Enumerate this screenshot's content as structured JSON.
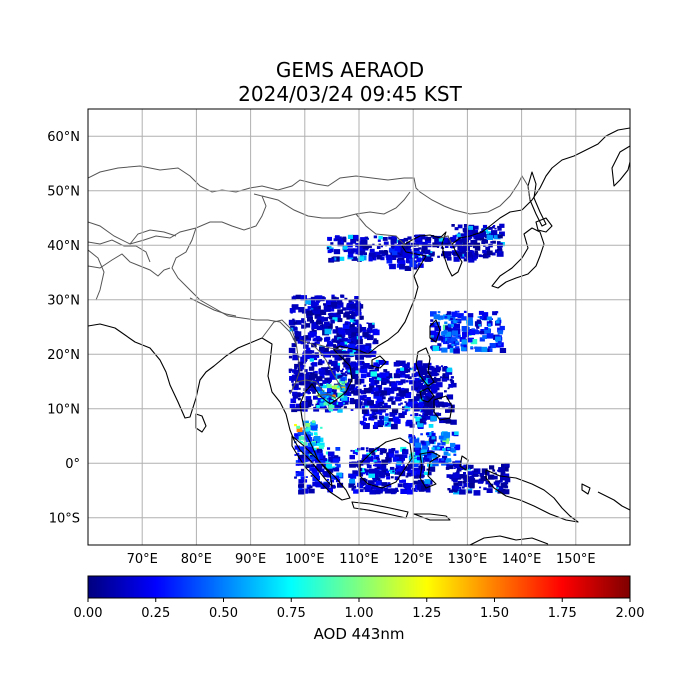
{
  "title": {
    "line1": "GEMS AERAOD",
    "line2": "2024/03/24 09:45 KST"
  },
  "map": {
    "lon_range": [
      60,
      160
    ],
    "lat_range": [
      -15,
      65
    ],
    "lat_ticks": [
      {
        "value": 60,
        "label": "60°N"
      },
      {
        "value": 50,
        "label": "50°N"
      },
      {
        "value": 40,
        "label": "40°N"
      },
      {
        "value": 30,
        "label": "30°N"
      },
      {
        "value": 20,
        "label": "20°N"
      },
      {
        "value": 10,
        "label": "10°N"
      },
      {
        "value": 0,
        "label": "0°"
      },
      {
        "value": -10,
        "label": "10°S"
      }
    ],
    "lon_ticks": [
      {
        "value": 70,
        "label": "70°E"
      },
      {
        "value": 80,
        "label": "80°E"
      },
      {
        "value": 90,
        "label": "90°E"
      },
      {
        "value": 100,
        "label": "100°E"
      },
      {
        "value": 110,
        "label": "110°E"
      },
      {
        "value": 120,
        "label": "120°E"
      },
      {
        "value": 130,
        "label": "130°E"
      },
      {
        "value": 140,
        "label": "140°E"
      },
      {
        "value": 150,
        "label": "150°E"
      }
    ],
    "gridlines": true
  },
  "colorbar": {
    "label": "AOD 443nm",
    "min": 0.0,
    "max": 2.0,
    "colormap": "jet",
    "ticks": [
      "0.00",
      "0.25",
      "0.50",
      "0.75",
      "1.00",
      "1.25",
      "1.50",
      "1.75",
      "2.00"
    ],
    "colors": [
      "#00007f",
      "#0000ff",
      "#007fff",
      "#00ffff",
      "#7fff7f",
      "#ffff00",
      "#ff7f00",
      "#ff0000",
      "#7f0000"
    ]
  },
  "aod_regions": [
    {
      "name": "north-china-band",
      "lon": [
        104,
        131
      ],
      "lat": [
        37.5,
        42
      ],
      "aod": 0.12
    },
    {
      "name": "northeast-china",
      "lon": [
        127,
        136
      ],
      "lat": [
        38,
        44
      ],
      "aod": 0.1
    },
    {
      "name": "north-china-plain",
      "lon": [
        115,
        121
      ],
      "lat": [
        36,
        40
      ],
      "aod": 0.2
    },
    {
      "name": "southwest-china-indochina",
      "lon": [
        97,
        110
      ],
      "lat": [
        10,
        31
      ],
      "aod": 0.12
    },
    {
      "name": "south-china",
      "lon": [
        106,
        113
      ],
      "lat": [
        20,
        26
      ],
      "aod": 0.15
    },
    {
      "name": "north-philippine-sea",
      "lon": [
        123,
        136
      ],
      "lat": [
        21,
        28
      ],
      "aod": 0.3
    },
    {
      "name": "south-china-sea",
      "lon": [
        110,
        123
      ],
      "lat": [
        7,
        19
      ],
      "aod": 0.15
    },
    {
      "name": "philippines",
      "lon": [
        120,
        127
      ],
      "lat": [
        8,
        18
      ],
      "aod": 0.1
    },
    {
      "name": "gulf-of-thailand",
      "lon": [
        102,
        107
      ],
      "lat": [
        10,
        16
      ],
      "aod": 0.6
    },
    {
      "name": "malay-peninsula",
      "lon": [
        98,
        103
      ],
      "lat": [
        1,
        8
      ],
      "aod": 0.55
    },
    {
      "name": "sumatra",
      "lon": [
        98,
        106
      ],
      "lat": [
        -5,
        3
      ],
      "aod": 0.2
    },
    {
      "name": "borneo-java-sea",
      "lon": [
        108,
        123
      ],
      "lat": [
        -5,
        3
      ],
      "aod": 0.15
    },
    {
      "name": "celebes-sea",
      "lon": [
        119,
        128
      ],
      "lat": [
        0,
        6
      ],
      "aod": 0.35
    },
    {
      "name": "new-guinea-west",
      "lon": [
        126,
        137
      ],
      "lat": [
        -5,
        0
      ],
      "aod": 0.1
    }
  ]
}
